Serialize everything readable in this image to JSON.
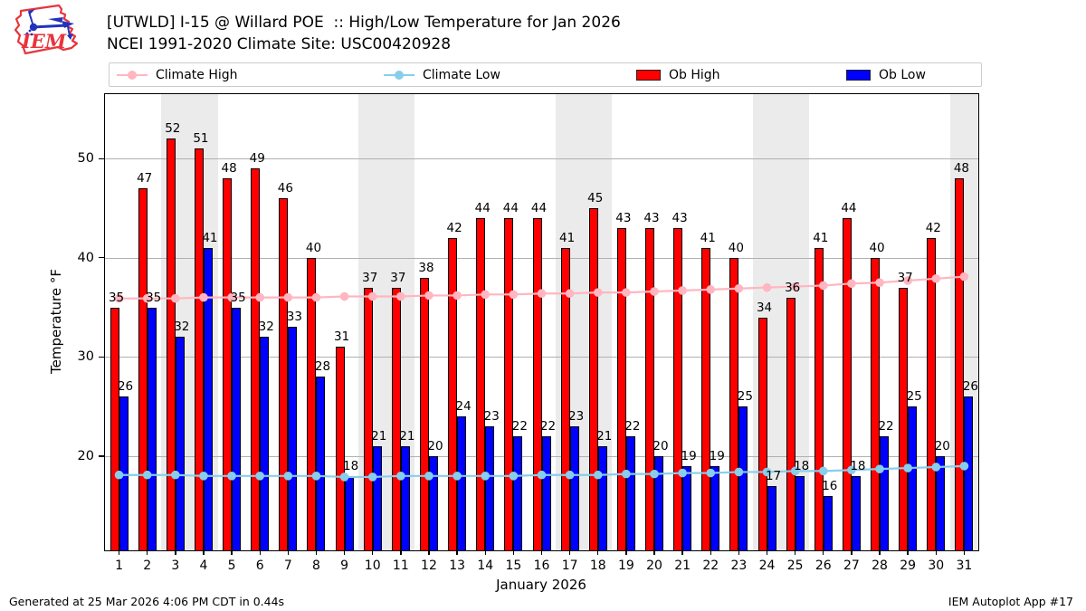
{
  "header": {
    "title": "[UTWLD] I-15 @ Willard POE  :: High/Low Temperature for Jan 2026",
    "subtitle": "NCEI 1991-2020 Climate Site: USC00420928"
  },
  "logo": {
    "text": "IEM",
    "shape": "iowa-state-outline",
    "outline_color": "#e8343c",
    "vane_color": "#2233bb"
  },
  "legend": [
    {
      "label": "Climate High",
      "type": "line",
      "color": "#FFB6C1"
    },
    {
      "label": "Climate Low",
      "type": "line",
      "color": "#87CEEB"
    },
    {
      "label": "Ob High",
      "type": "swatch",
      "color": "#FF0000"
    },
    {
      "label": "Ob Low",
      "type": "swatch",
      "color": "#0000FF"
    }
  ],
  "chart_data": {
    "type": "bar",
    "title": "[UTWLD] I-15 @ Willard POE  :: High/Low Temperature for Jan 2026",
    "subtitle": "NCEI 1991-2020 Climate Site: USC00420928",
    "xlabel": "January 2026",
    "ylabel": "Temperature °F",
    "x": [
      1,
      2,
      3,
      4,
      5,
      6,
      7,
      8,
      9,
      10,
      11,
      12,
      13,
      14,
      15,
      16,
      17,
      18,
      19,
      20,
      21,
      22,
      23,
      24,
      25,
      26,
      27,
      28,
      29,
      30,
      31
    ],
    "series": [
      {
        "name": "Ob High",
        "type": "bar",
        "color": "#FF0000",
        "values": [
          35,
          47,
          52,
          51,
          48,
          49,
          46,
          40,
          31,
          37,
          37,
          38,
          42,
          44,
          44,
          44,
          41,
          45,
          43,
          43,
          43,
          41,
          40,
          34,
          36,
          41,
          44,
          40,
          37,
          42,
          48
        ]
      },
      {
        "name": "Ob Low",
        "type": "bar",
        "color": "#0000FF",
        "values": [
          26,
          35,
          32,
          41,
          35,
          32,
          33,
          28,
          18,
          21,
          21,
          20,
          24,
          23,
          22,
          22,
          23,
          21,
          22,
          20,
          19,
          19,
          25,
          17,
          18,
          16,
          18,
          22,
          25,
          20,
          26
        ]
      },
      {
        "name": "Climate High",
        "type": "line",
        "color": "#FFB6C1",
        "values": [
          35.9,
          35.9,
          35.9,
          36.0,
          36.0,
          36.0,
          36.0,
          36.0,
          36.1,
          36.1,
          36.1,
          36.2,
          36.2,
          36.3,
          36.3,
          36.4,
          36.4,
          36.5,
          36.5,
          36.6,
          36.7,
          36.8,
          36.9,
          37.0,
          37.1,
          37.2,
          37.4,
          37.5,
          37.7,
          37.9,
          38.1
        ]
      },
      {
        "name": "Climate Low",
        "type": "line",
        "color": "#87CEEB",
        "values": [
          18.1,
          18.1,
          18.1,
          18.0,
          18.0,
          18.0,
          18.0,
          18.0,
          17.9,
          17.9,
          18.0,
          18.0,
          18.0,
          18.0,
          18.0,
          18.1,
          18.1,
          18.1,
          18.2,
          18.2,
          18.3,
          18.3,
          18.4,
          18.4,
          18.5,
          18.5,
          18.6,
          18.7,
          18.8,
          18.9,
          19.0
        ]
      }
    ],
    "ylim": [
      10.5,
      56.5
    ],
    "yticks": [
      20,
      30,
      40,
      50
    ],
    "weekend_shaded_days": [
      3,
      4,
      10,
      11,
      17,
      18,
      24,
      25,
      31
    ],
    "shading_color": "#ebebeb",
    "grid": true,
    "legend_position": "top"
  },
  "footer": {
    "left": "Generated at 25 Mar 2026 4:06 PM CDT in 0.44s",
    "right": "IEM Autoplot App #17"
  }
}
